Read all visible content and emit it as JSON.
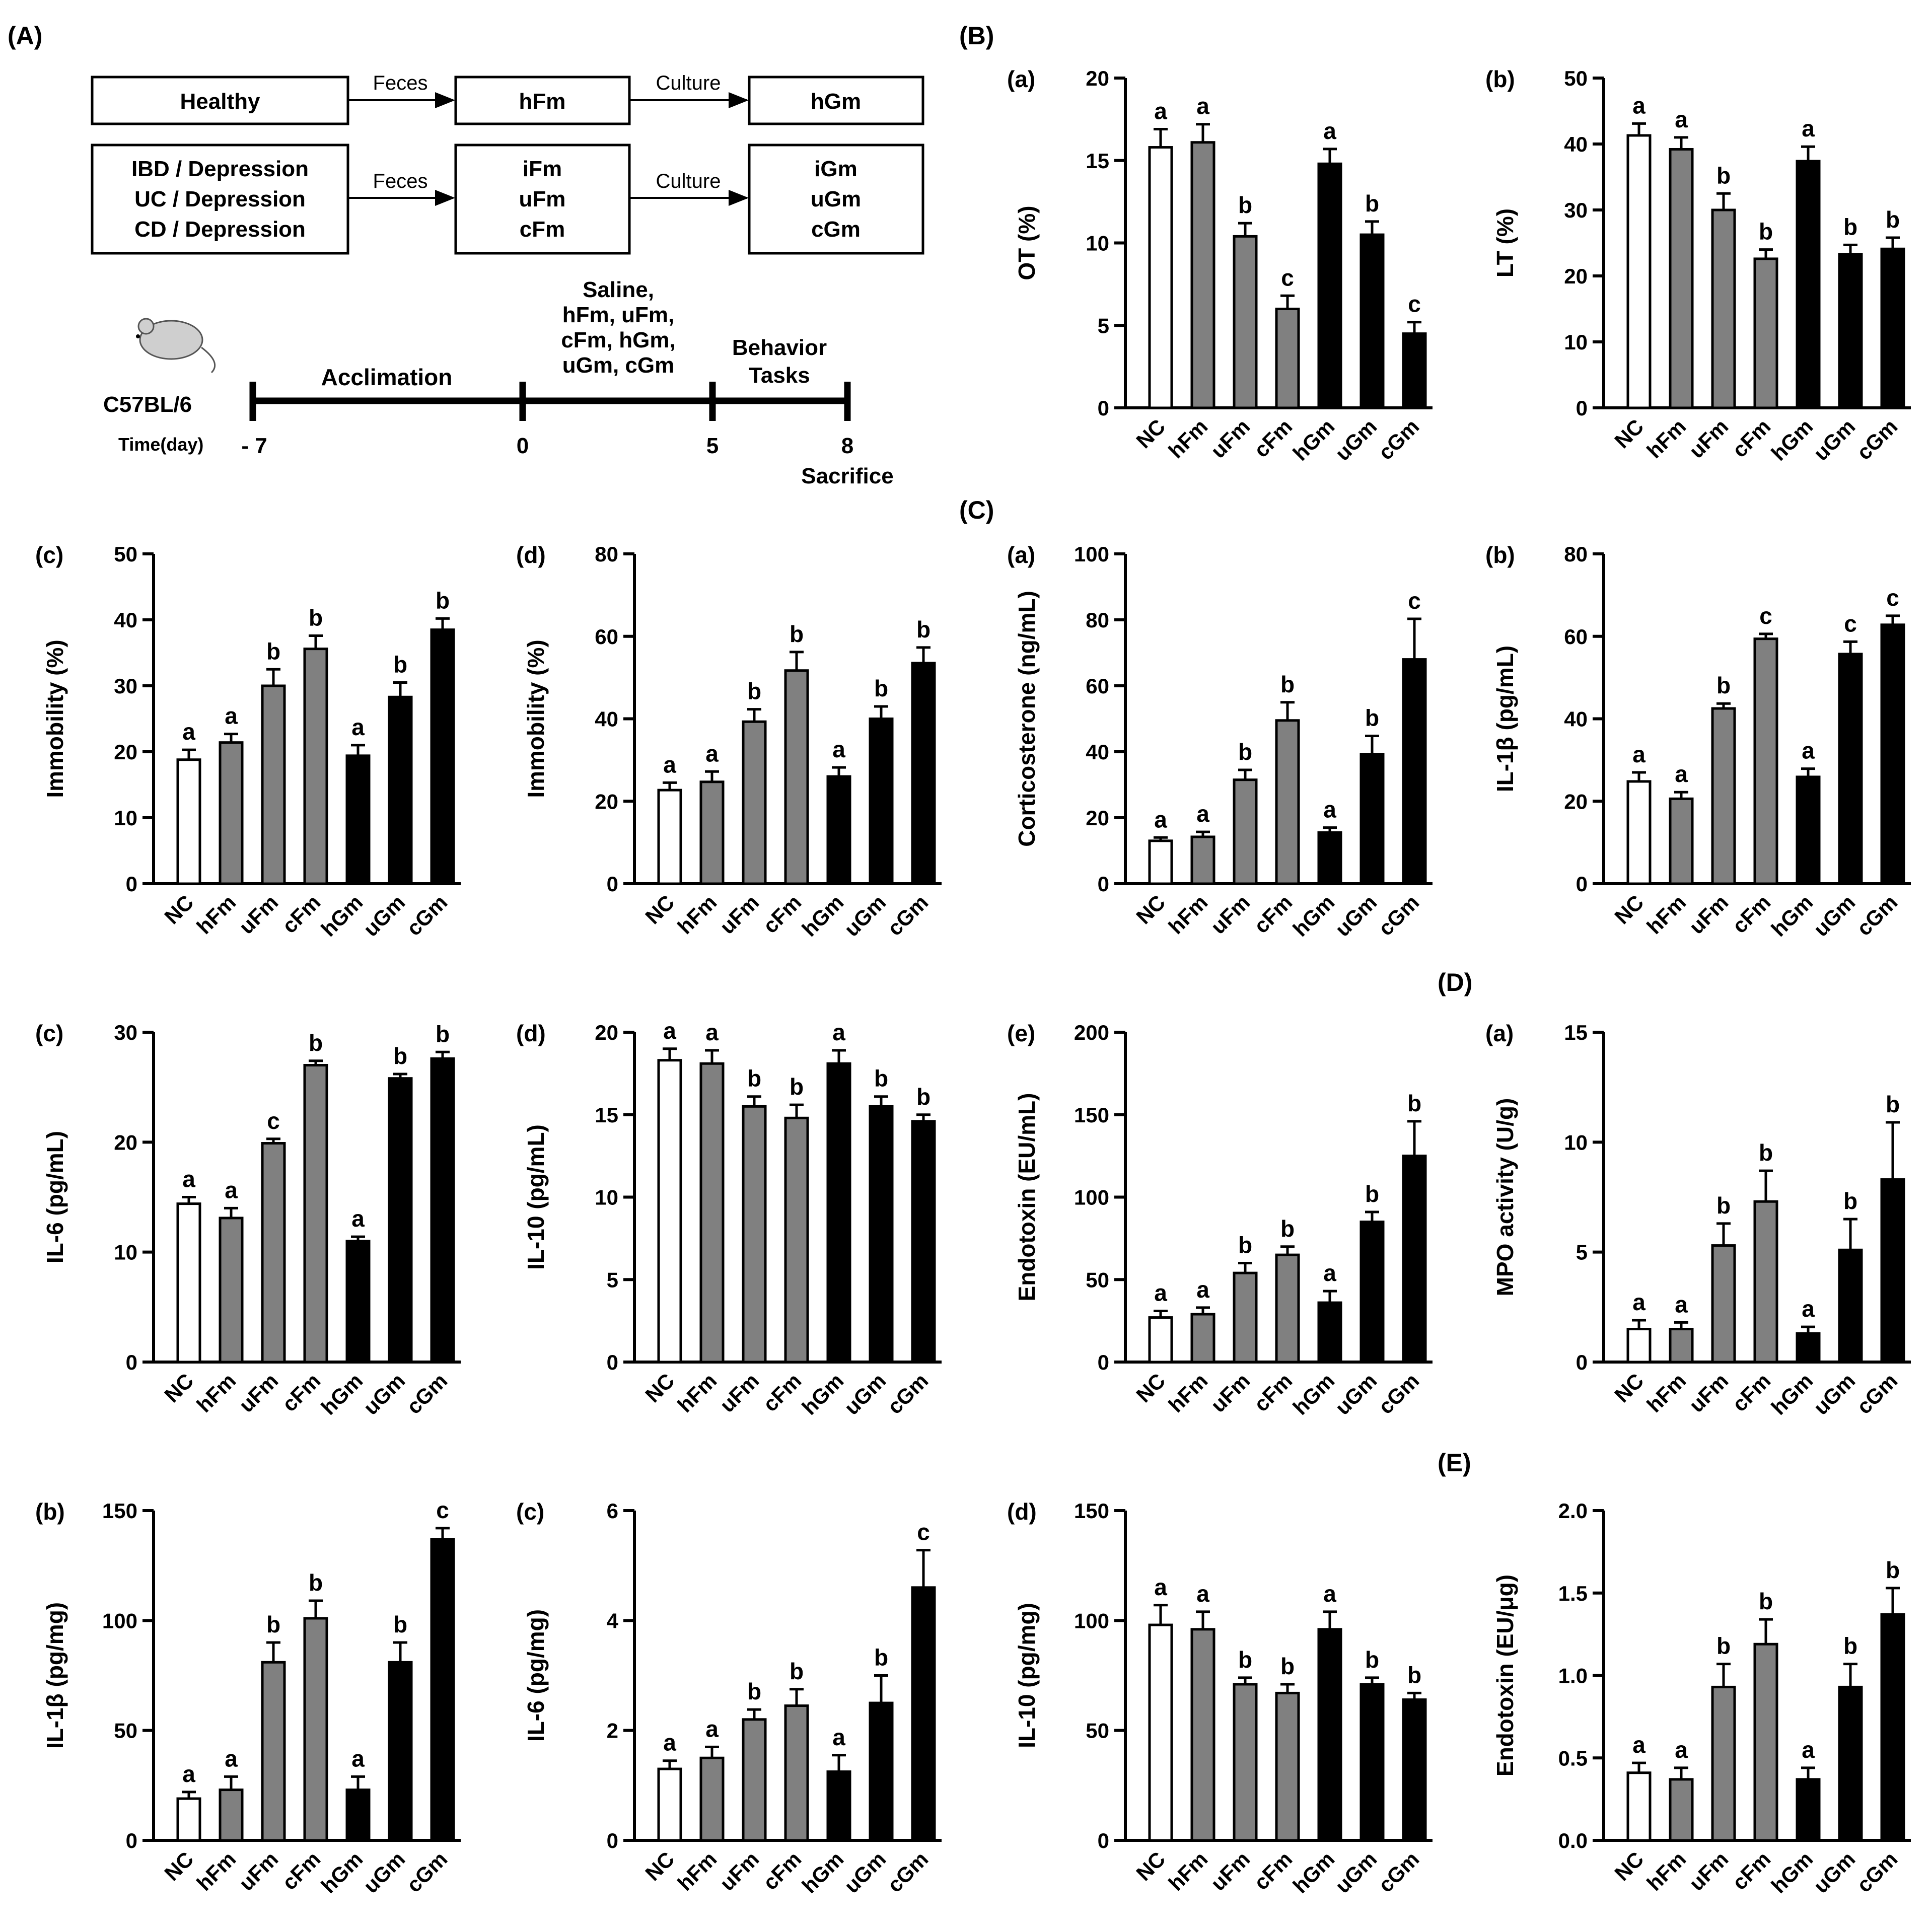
{
  "panel_letters": {
    "A": "(A)",
    "B": "(B)",
    "C": "(C)",
    "D": "(D)",
    "E": "(E)"
  },
  "scheme": {
    "row1": {
      "source": "Healthy",
      "arrow1": "Feces",
      "mid": "hFm",
      "arrow2": "Culture",
      "dest": "hGm"
    },
    "row2": {
      "source": [
        "IBD / Depression",
        "UC / Depression",
        "CD / Depression"
      ],
      "arrow1": "Feces",
      "mid": [
        "iFm",
        "uFm",
        "cFm"
      ],
      "arrow2": "Culture",
      "dest": [
        "iGm",
        "uGm",
        "cGm"
      ]
    },
    "timeline": {
      "strain": "C57BL/6",
      "time_label": "Time(day)",
      "phase1": "Acclimation",
      "treatment": [
        "Saline,",
        "hFm, uFm,",
        "cFm, hGm,",
        "uGm, cGm"
      ],
      "phase3": [
        "Behavior",
        "Tasks"
      ],
      "days": [
        "- 7",
        "0",
        "5",
        "8"
      ],
      "end_label": "Sacrifice"
    }
  },
  "colors": {
    "NC": "#ffffff",
    "Fm": "#808080",
    "Gm": "#000000"
  },
  "chart_data": [
    {
      "id": "B_a",
      "type": "bar",
      "sub": "(a)",
      "ylabel": "OT (%)",
      "ylim": [
        0,
        20
      ],
      "yticks": [
        "0",
        "5",
        "10",
        "15",
        "20"
      ],
      "categories": [
        "NC",
        "hFm",
        "uFm",
        "cFm",
        "hGm",
        "uGm",
        "cGm"
      ],
      "values": [
        15.8,
        16.1,
        10.4,
        6.0,
        14.8,
        10.5,
        4.5
      ],
      "errors": [
        1.1,
        1.1,
        0.8,
        0.8,
        0.9,
        0.8,
        0.7
      ],
      "letters": [
        "a",
        "a",
        "b",
        "c",
        "a",
        "b",
        "c"
      ]
    },
    {
      "id": "B_b",
      "type": "bar",
      "sub": "(b)",
      "ylabel": "LT (%)",
      "ylim": [
        0,
        50
      ],
      "yticks": [
        "0",
        "10",
        "20",
        "30",
        "40",
        "50"
      ],
      "categories": [
        "NC",
        "hFm",
        "uFm",
        "cFm",
        "hGm",
        "uGm",
        "cGm"
      ],
      "values": [
        41.3,
        39.2,
        30.0,
        22.6,
        37.4,
        23.3,
        24.1
      ],
      "errors": [
        1.8,
        1.8,
        2.5,
        1.4,
        2.2,
        1.4,
        1.7
      ],
      "letters": [
        "a",
        "a",
        "b",
        "b",
        "a",
        "b",
        "b"
      ]
    },
    {
      "id": "B_c",
      "type": "bar",
      "sub": "(c)",
      "ylabel": "Immobility (%)",
      "ylim": [
        0,
        50
      ],
      "yticks": [
        "0",
        "10",
        "20",
        "30",
        "40",
        "50"
      ],
      "categories": [
        "NC",
        "hFm",
        "uFm",
        "cFm",
        "hGm",
        "uGm",
        "cGm"
      ],
      "values": [
        18.8,
        21.4,
        30.0,
        35.6,
        19.4,
        28.3,
        38.5
      ],
      "errors": [
        1.5,
        1.3,
        2.5,
        2.0,
        1.6,
        2.2,
        1.7
      ],
      "letters": [
        "a",
        "a",
        "b",
        "b",
        "a",
        "b",
        "b"
      ]
    },
    {
      "id": "B_d",
      "type": "bar",
      "sub": "(d)",
      "ylabel": "Immobility (%)",
      "ylim": [
        0,
        80
      ],
      "yticks": [
        "0",
        "20",
        "40",
        "60",
        "80"
      ],
      "categories": [
        "NC",
        "hFm",
        "uFm",
        "cFm",
        "hGm",
        "uGm",
        "cGm"
      ],
      "values": [
        22.7,
        24.7,
        39.3,
        51.7,
        26.0,
        40.0,
        53.5
      ],
      "errors": [
        1.8,
        2.5,
        3.0,
        4.5,
        2.2,
        3.0,
        3.8
      ],
      "letters": [
        "a",
        "a",
        "b",
        "b",
        "a",
        "b",
        "b"
      ]
    },
    {
      "id": "C_a",
      "type": "bar",
      "sub": "(a)",
      "ylabel": "Corticosterone (ng/mL)",
      "ylim": [
        0,
        100
      ],
      "yticks": [
        "0",
        "20",
        "40",
        "60",
        "80",
        "100"
      ],
      "categories": [
        "NC",
        "hFm",
        "uFm",
        "cFm",
        "hGm",
        "uGm",
        "cGm"
      ],
      "values": [
        13.0,
        14.2,
        31.5,
        49.5,
        15.5,
        39.3,
        68.0
      ],
      "errors": [
        1.0,
        1.5,
        3.0,
        5.5,
        1.5,
        5.5,
        12.3
      ],
      "letters": [
        "a",
        "a",
        "b",
        "b",
        "a",
        "b",
        "c"
      ]
    },
    {
      "id": "C_b",
      "type": "bar",
      "sub": "(b)",
      "ylabel": "IL-1β (pg/mL)",
      "ylim": [
        0,
        80
      ],
      "yticks": [
        "0",
        "20",
        "40",
        "60",
        "80"
      ],
      "categories": [
        "NC",
        "hFm",
        "uFm",
        "cFm",
        "hGm",
        "uGm",
        "cGm"
      ],
      "values": [
        24.8,
        20.6,
        42.5,
        59.4,
        25.9,
        55.7,
        62.8
      ],
      "errors": [
        2.2,
        1.6,
        1.2,
        1.2,
        2.0,
        3.0,
        2.2
      ],
      "letters": [
        "a",
        "a",
        "b",
        "c",
        "a",
        "c",
        "c"
      ]
    },
    {
      "id": "C_c",
      "type": "bar",
      "sub": "(c)",
      "ylabel": "IL-6 (pg/mL)",
      "ylim": [
        0,
        30
      ],
      "yticks": [
        "0",
        "10",
        "20",
        "30"
      ],
      "categories": [
        "NC",
        "hFm",
        "uFm",
        "cFm",
        "hGm",
        "uGm",
        "cGm"
      ],
      "values": [
        14.4,
        13.1,
        19.9,
        27.0,
        11.0,
        25.8,
        27.6
      ],
      "errors": [
        0.6,
        0.9,
        0.4,
        0.4,
        0.4,
        0.4,
        0.6
      ],
      "letters": [
        "a",
        "a",
        "c",
        "b",
        "a",
        "b",
        "b"
      ]
    },
    {
      "id": "C_d",
      "type": "bar",
      "sub": "(d)",
      "ylabel": "IL-10 (pg/mL)",
      "ylim": [
        0,
        20
      ],
      "yticks": [
        "0",
        "5",
        "10",
        "15",
        "20"
      ],
      "categories": [
        "NC",
        "hFm",
        "uFm",
        "cFm",
        "hGm",
        "uGm",
        "cGm"
      ],
      "values": [
        18.3,
        18.1,
        15.5,
        14.8,
        18.1,
        15.5,
        14.6
      ],
      "errors": [
        0.7,
        0.8,
        0.6,
        0.8,
        0.8,
        0.6,
        0.4
      ],
      "letters": [
        "a",
        "a",
        "b",
        "b",
        "a",
        "b",
        "b"
      ]
    },
    {
      "id": "C_e",
      "type": "bar",
      "sub": "(e)",
      "ylabel": "Endotoxin (EU/mL)",
      "ylim": [
        0,
        200
      ],
      "yticks": [
        "0",
        "50",
        "100",
        "150",
        "200"
      ],
      "categories": [
        "NC",
        "hFm",
        "uFm",
        "cFm",
        "hGm",
        "uGm",
        "cGm"
      ],
      "values": [
        27,
        29,
        54,
        65,
        36,
        85,
        125
      ],
      "errors": [
        4,
        4,
        6,
        5,
        7,
        6,
        21
      ],
      "letters": [
        "a",
        "a",
        "b",
        "b",
        "a",
        "b",
        "b"
      ]
    },
    {
      "id": "D_a",
      "type": "bar",
      "sub": "(a)",
      "ylabel": "MPO activity (U/g)",
      "ylim": [
        0,
        15
      ],
      "yticks": [
        "0",
        "5",
        "10",
        "15"
      ],
      "categories": [
        "NC",
        "hFm",
        "uFm",
        "cFm",
        "hGm",
        "uGm",
        "cGm"
      ],
      "values": [
        1.5,
        1.5,
        5.3,
        7.3,
        1.3,
        5.1,
        8.3
      ],
      "errors": [
        0.4,
        0.3,
        1.0,
        1.4,
        0.3,
        1.4,
        2.6
      ],
      "letters": [
        "a",
        "a",
        "b",
        "b",
        "a",
        "b",
        "b"
      ]
    },
    {
      "id": "D_b",
      "type": "bar",
      "sub": "(b)",
      "ylabel": "IL-1β (pg/mg)",
      "ylim": [
        0,
        150
      ],
      "yticks": [
        "0",
        "50",
        "100",
        "150"
      ],
      "categories": [
        "NC",
        "hFm",
        "uFm",
        "cFm",
        "hGm",
        "uGm",
        "cGm"
      ],
      "values": [
        19,
        23,
        81,
        101,
        23,
        81,
        137
      ],
      "errors": [
        3,
        6,
        9,
        8,
        6,
        9,
        5
      ],
      "letters": [
        "a",
        "a",
        "b",
        "b",
        "a",
        "b",
        "c"
      ]
    },
    {
      "id": "D_c",
      "type": "bar",
      "sub": "(c)",
      "ylabel": "IL-6 (pg/mg)",
      "ylim": [
        0,
        6
      ],
      "yticks": [
        "0",
        "2",
        "4",
        "6"
      ],
      "categories": [
        "NC",
        "hFm",
        "uFm",
        "cFm",
        "hGm",
        "uGm",
        "cGm"
      ],
      "values": [
        1.3,
        1.5,
        2.2,
        2.45,
        1.25,
        2.5,
        4.6
      ],
      "errors": [
        0.15,
        0.2,
        0.18,
        0.3,
        0.3,
        0.5,
        0.68
      ],
      "letters": [
        "a",
        "a",
        "b",
        "b",
        "a",
        "b",
        "c"
      ]
    },
    {
      "id": "D_d",
      "type": "bar",
      "sub": "(d)",
      "ylabel": "IL-10 (pg/mg)",
      "ylim": [
        0,
        150
      ],
      "yticks": [
        "0",
        "50",
        "100",
        "150"
      ],
      "categories": [
        "NC",
        "hFm",
        "uFm",
        "cFm",
        "hGm",
        "uGm",
        "cGm"
      ],
      "values": [
        98,
        96,
        71,
        67,
        96,
        71,
        64
      ],
      "errors": [
        9,
        8,
        3,
        4,
        8,
        3,
        3
      ],
      "letters": [
        "a",
        "a",
        "b",
        "b",
        "a",
        "b",
        "b"
      ]
    },
    {
      "id": "E_a",
      "type": "bar",
      "sub": "",
      "ylabel": "Endotoxin (EU/μg)",
      "ylim": [
        0,
        2.0
      ],
      "yticks": [
        "0.0",
        "0.5",
        "1.0",
        "1.5",
        "2.0"
      ],
      "categories": [
        "NC",
        "hFm",
        "uFm",
        "cFm",
        "hGm",
        "uGm",
        "cGm"
      ],
      "values": [
        0.41,
        0.37,
        0.93,
        1.19,
        0.37,
        0.93,
        1.37
      ],
      "errors": [
        0.06,
        0.07,
        0.14,
        0.15,
        0.07,
        0.14,
        0.16
      ],
      "letters": [
        "a",
        "a",
        "b",
        "b",
        "a",
        "b",
        "b"
      ]
    }
  ]
}
